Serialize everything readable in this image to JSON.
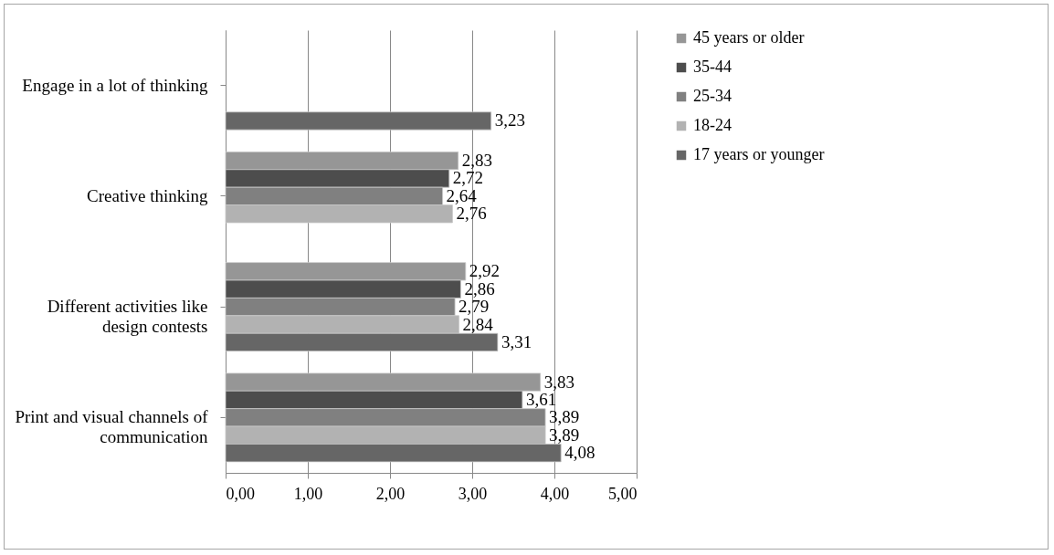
{
  "chart_data": {
    "type": "bar",
    "orientation": "horizontal",
    "categories": [
      "Engage in a lot of thinking",
      "Creative thinking",
      "Different activities like design contests",
      "Print and visual channels of communication"
    ],
    "series": [
      {
        "name": "45 years or older",
        "color": "#969696",
        "values": [
          null,
          2.83,
          2.92,
          3.83
        ],
        "value_labels": [
          null,
          "2,83",
          "2,92",
          "3,83"
        ]
      },
      {
        "name": "35-44",
        "color": "#4d4d4d",
        "values": [
          null,
          2.72,
          2.86,
          3.61
        ],
        "value_labels": [
          null,
          "2,72",
          "2,86",
          "3,61"
        ]
      },
      {
        "name": "25-34",
        "color": "#808080",
        "values": [
          null,
          2.64,
          2.79,
          3.89
        ],
        "value_labels": [
          null,
          "2,64",
          "2,79",
          "3,89"
        ]
      },
      {
        "name": "18-24",
        "color": "#b2b2b2",
        "values": [
          null,
          2.76,
          2.84,
          3.89
        ],
        "value_labels": [
          null,
          "2,76",
          "2,84",
          "3,89"
        ]
      },
      {
        "name": "17 years or younger",
        "color": "#666666",
        "values": [
          3.23,
          null,
          3.31,
          4.08
        ],
        "value_labels": [
          "3,23",
          null,
          "3,31",
          "4,08"
        ]
      }
    ],
    "xlim": [
      0,
      5
    ],
    "xticks": [
      {
        "value": 0,
        "label": "0,00"
      },
      {
        "value": 1,
        "label": "1,00"
      },
      {
        "value": 2,
        "label": "2,00"
      },
      {
        "value": 3,
        "label": "3,00"
      },
      {
        "value": 4,
        "label": "4,00"
      },
      {
        "value": 5,
        "label": "5,00"
      }
    ],
    "grid": "x",
    "legend": "right"
  }
}
